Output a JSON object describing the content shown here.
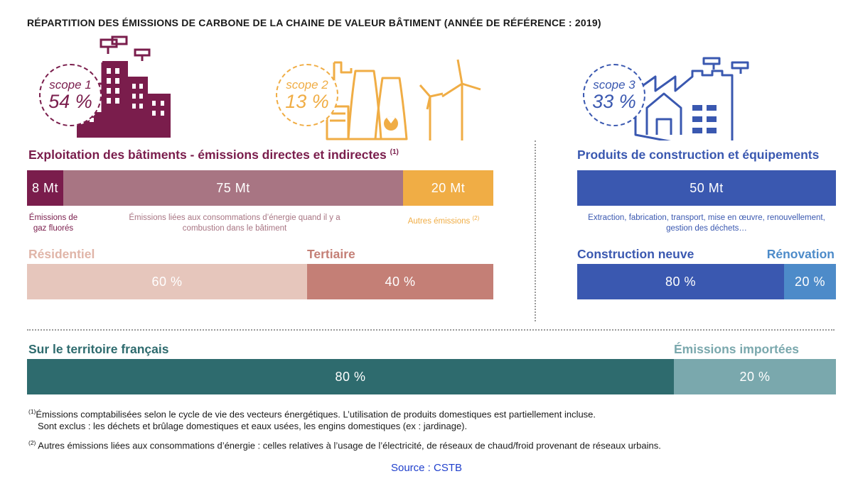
{
  "title": "RÉPARTITION DES ÉMISSIONS DE CARBONE DE LA CHAINE DE VALEUR BÂTIMENT (ANNÉE DE RÉFÉRENCE : 2019)",
  "colors": {
    "scope1": "#7a1d4c",
    "scope1_mid": "#a87583",
    "scope2": "#f0ad45",
    "scope3": "#3a58b0",
    "residentiel": "#e6c6bc",
    "tertiaire": "#c47f76",
    "renovation": "#4d8bc9",
    "territoire": "#2e6b6e",
    "importees": "#7aa8ad",
    "source": "#1f3fcc"
  },
  "scopes": [
    {
      "label": "scope 1",
      "value": "54 %",
      "icon": "city-buildings-icon"
    },
    {
      "label": "scope 2",
      "value": "13 %",
      "icon": "power-plant-wind-turbines-icon"
    },
    {
      "label": "scope 3",
      "value": "33 %",
      "icon": "factory-house-icon"
    }
  ],
  "left_section": {
    "heading": "Exploitation des bâtiments - émissions directes et indirectes",
    "heading_note": "(1)",
    "bars": [
      {
        "label": "8 Mt",
        "value": 8,
        "caption": "Émissions de gaz fluorés"
      },
      {
        "label": "75 Mt",
        "value": 75,
        "caption": "Émissions liées aux consommations d’énergie quand il y a combustion dans le bâtiment"
      },
      {
        "label": "20 Mt",
        "value": 20,
        "caption": "Autres émissions",
        "caption_note": "(2)"
      }
    ],
    "split": {
      "left_label": "Résidentiel",
      "right_label": "Tertiaire",
      "left_value": "60 %",
      "right_value": "40 %",
      "left_share": 60,
      "right_share": 40
    }
  },
  "right_section": {
    "heading": "Produits de construction et équipements",
    "bar_label": "50 Mt",
    "bar_value": 50,
    "caption": "Extraction, fabrication, transport, mise en œuvre, renouvellement, gestion des déchets…",
    "split": {
      "left_label": "Construction neuve",
      "right_label": "Rénovation",
      "left_value": "80 %",
      "right_value": "20 %",
      "left_share": 80,
      "right_share": 20
    }
  },
  "bottom_section": {
    "left_label": "Sur le territoire français",
    "right_label": "Émissions importées",
    "left_value": "80 %",
    "right_value": "20 %",
    "left_share": 80,
    "right_share": 20
  },
  "notes": [
    {
      "marker": "(1)",
      "lines": [
        "Émissions comptabilisées selon le cycle de vie des vecteurs énergétiques. L’utilisation de produits domestiques est partiellement incluse.",
        "Sont exclus : les déchets et brûlage domestiques et eaux usées, les engins domestiques (ex : jardinage)."
      ]
    },
    {
      "marker": "(2)",
      "lines": [
        "Autres émissions liées aux consommations d’énergie : celles relatives à l’usage de l’électricité, de réseaux de chaud/froid provenant de réseaux urbains."
      ]
    }
  ],
  "source": "Source : CSTB"
}
